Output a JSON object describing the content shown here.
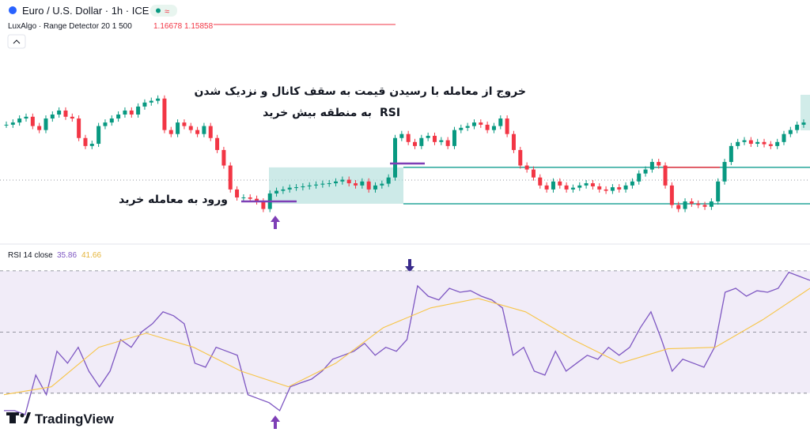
{
  "header": {
    "symbol": "Euro / U.S. Dollar · 1h · ICE",
    "indicator": "LuxAlgo · Range Detector 20 1 500",
    "brand": "TradingView"
  },
  "annotations": {
    "exit_line1": "خروج از معامله با رسیدن قیمت به سقف کانال و نزدیک شدن",
    "exit_line2": "به منطقه بیش خرید",
    "exit_rsi": "RSI",
    "entry": "ورود به معامله خرید"
  },
  "chart_data": [
    {
      "type": "candlestick",
      "channel_top": 1.16678,
      "channel_bottom": 1.15858,
      "ylim": [
        1.1502,
        1.1974
      ],
      "up_color": "#089981",
      "down_color": "#f23645",
      "close": [
        1.1764,
        1.1769,
        1.1778,
        1.1782,
        1.1761,
        1.1752,
        1.1778,
        1.1787,
        1.1796,
        1.1782,
        1.1778,
        1.1734,
        1.1716,
        1.1721,
        1.1761,
        1.1769,
        1.1778,
        1.1787,
        1.1796,
        1.1787,
        1.1805,
        1.1814,
        1.1818,
        1.1823,
        1.1752,
        1.1743,
        1.1769,
        1.1761,
        1.1752,
        1.1743,
        1.1761,
        1.1734,
        1.1707,
        1.1672,
        1.1618,
        1.16,
        1.16,
        1.1597,
        1.1591,
        1.1574,
        1.1609,
        1.1615,
        1.1618,
        1.1622,
        1.1623,
        1.1625,
        1.1627,
        1.1629,
        1.1631,
        1.1632,
        1.1636,
        1.164,
        1.1632,
        1.1627,
        1.1636,
        1.1618,
        1.1627,
        1.1631,
        1.1645,
        1.1734,
        1.1743,
        1.1725,
        1.1716,
        1.1734,
        1.1739,
        1.1725,
        1.1729,
        1.1716,
        1.1752,
        1.1757,
        1.1761,
        1.1769,
        1.1764,
        1.1752,
        1.1761,
        1.1778,
        1.1743,
        1.1707,
        1.1672,
        1.1663,
        1.1645,
        1.1627,
        1.1618,
        1.1636,
        1.1627,
        1.1618,
        1.1622,
        1.1627,
        1.1632,
        1.1625,
        1.1618,
        1.1615,
        1.1623,
        1.1618,
        1.1627,
        1.1636,
        1.1654,
        1.1663,
        1.168,
        1.1672,
        1.1627,
        1.1583,
        1.1574,
        1.1591,
        1.1586,
        1.1583,
        1.1579,
        1.1591,
        1.1636,
        1.168,
        1.1716,
        1.1725,
        1.1729,
        1.1721,
        1.1725,
        1.172,
        1.1716,
        1.1725,
        1.1743,
        1.1752,
        1.1764,
        1.1769
      ]
    },
    {
      "type": "line",
      "title": "RSI 14 close",
      "ylim": [
        16,
        78.5
      ],
      "levels": [
        70,
        50,
        30
      ],
      "series": [
        {
          "name": "35.86",
          "color": "#7e57c2",
          "values": [
            24.3,
            24.3,
            23.0,
            35.9,
            29.5,
            43.7,
            39.8,
            45.0,
            37.2,
            32.1,
            37.2,
            47.5,
            45.0,
            50.1,
            52.7,
            56.6,
            55.3,
            52.7,
            39.8,
            38.5,
            45.0,
            43.7,
            42.4,
            29.5,
            28.2,
            26.9,
            24.3,
            32.1,
            33.4,
            34.6,
            37.2,
            41.1,
            42.4,
            43.7,
            46.3,
            42.4,
            45.0,
            43.7,
            47.5,
            65.1,
            61.7,
            60.5,
            64.3,
            63.0,
            63.5,
            61.7,
            60.5,
            57.9,
            42.4,
            45.0,
            37.2,
            35.9,
            43.7,
            37.2,
            39.8,
            42.4,
            41.1,
            45.0,
            42.4,
            45.0,
            51.4,
            56.6,
            47.5,
            37.2,
            41.1,
            39.8,
            38.5,
            45.0,
            63.0,
            64.3,
            61.7,
            63.5,
            63.0,
            64.3,
            69.5,
            68.2,
            66.9
          ]
        },
        {
          "name": "41.66",
          "color": "#f7c548",
          "values": [
            29.5,
            32.1,
            45.0,
            49.6,
            45.0,
            37.2,
            32.1,
            39.8,
            51.4,
            57.9,
            61.0,
            56.6,
            47.5,
            39.8,
            44.5,
            45.0,
            54.0,
            64.3
          ]
        }
      ]
    }
  ]
}
